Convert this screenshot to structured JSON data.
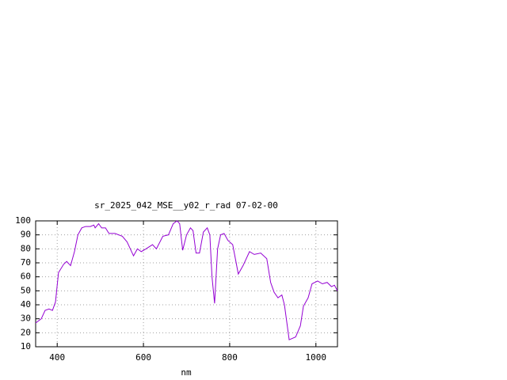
{
  "chart_data": {
    "type": "line",
    "title": "sr_2025_042_MSE__y02_r_rad 07-02-00",
    "x_label": "nm",
    "x": [
      350,
      363,
      372,
      381,
      389,
      396,
      403,
      415,
      422,
      431,
      440,
      448,
      457,
      466,
      477,
      485,
      488,
      496,
      503,
      512,
      520,
      534,
      551,
      562,
      577,
      586,
      595,
      606,
      621,
      630,
      645,
      658,
      669,
      678,
      684,
      691,
      700,
      709,
      715,
      722,
      730,
      739,
      748,
      754,
      759,
      765,
      772,
      779,
      787,
      796,
      807,
      820,
      831,
      846,
      857,
      872,
      886,
      895,
      903,
      912,
      921,
      927,
      938,
      953,
      964,
      971,
      982,
      991,
      1004,
      1015,
      1026,
      1036,
      1043,
      1050
    ],
    "series": [
      {
        "name": null,
        "color": "#9400d3",
        "values": [
          27,
          30,
          36,
          37,
          36,
          42,
          63,
          69,
          71,
          68,
          78,
          90,
          95,
          96,
          96,
          97,
          95,
          98,
          95,
          95,
          91,
          91,
          89,
          85,
          75,
          80,
          78,
          80,
          83,
          80,
          89,
          90,
          98,
          100,
          98,
          79,
          90,
          95,
          93,
          77,
          77,
          92,
          95,
          90,
          60,
          41,
          80,
          90,
          91,
          86,
          83,
          62,
          68,
          78,
          76,
          77,
          73,
          56,
          49,
          45,
          47,
          40,
          15,
          17,
          25,
          39,
          45,
          55,
          57,
          55,
          56,
          53,
          54,
          50
        ]
      }
    ],
    "xlim": [
      350,
      1050
    ],
    "xticks": [
      400,
      600,
      800,
      1000
    ],
    "ylim": [
      10,
      100
    ],
    "yticks": [
      10,
      20,
      30,
      40,
      50,
      60,
      70,
      80,
      90,
      100
    ],
    "grid": true
  }
}
